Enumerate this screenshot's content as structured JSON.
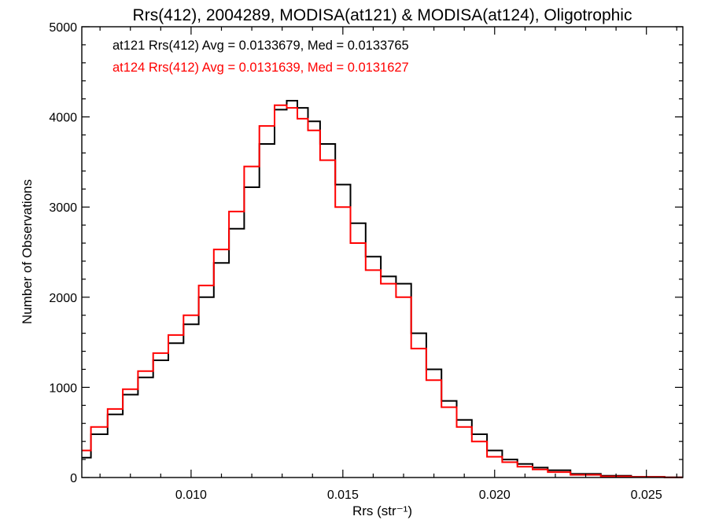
{
  "chart_data": {
    "type": "line",
    "title": "Rrs(412), 2004289, MODISA(at121) & MODISA(at124), Oligotrophic",
    "xlabel": "Rrs (str⁻¹)",
    "ylabel": "Number of Observations",
    "xlim": [
      0.0064,
      0.0262
    ],
    "ylim": [
      0,
      5000
    ],
    "x_ticks": [
      0.01,
      0.015,
      0.02,
      0.025
    ],
    "x_tick_labels": [
      "0.010",
      "0.015",
      "0.020",
      "0.025"
    ],
    "y_ticks": [
      0,
      1000,
      2000,
      3000,
      4000,
      5000
    ],
    "y_tick_labels": [
      "0",
      "1000",
      "2000",
      "3000",
      "4000",
      "5000"
    ],
    "grid": false,
    "step": true,
    "annotations": [
      {
        "text": "at121 Rrs(412) Avg = 0.0133679, Med = 0.0133765",
        "color": "#000000"
      },
      {
        "text": "at124 Rrs(412) Avg = 0.0131639, Med = 0.0131627",
        "color": "#ff0000"
      }
    ],
    "series": [
      {
        "color": "#000000",
        "x": [
          0.0064,
          0.007,
          0.0075,
          0.008,
          0.0085,
          0.009,
          0.0095,
          0.01,
          0.0105,
          0.011,
          0.0115,
          0.012,
          0.0125,
          0.013,
          0.0133,
          0.0137,
          0.014,
          0.0145,
          0.015,
          0.0155,
          0.016,
          0.0165,
          0.017,
          0.0175,
          0.018,
          0.0185,
          0.019,
          0.0195,
          0.02,
          0.0205,
          0.021,
          0.0215,
          0.022,
          0.023,
          0.024,
          0.025,
          0.0262
        ],
        "values": [
          220,
          480,
          700,
          920,
          1110,
          1300,
          1490,
          1700,
          2000,
          2380,
          2760,
          3220,
          3700,
          4080,
          4180,
          4100,
          3950,
          3700,
          3250,
          2820,
          2450,
          2230,
          2150,
          1600,
          1200,
          850,
          640,
          480,
          300,
          200,
          150,
          110,
          80,
          40,
          20,
          8,
          2
        ]
      },
      {
        "color": "#ff0000",
        "x": [
          0.0064,
          0.007,
          0.0075,
          0.008,
          0.0085,
          0.009,
          0.0095,
          0.01,
          0.0105,
          0.011,
          0.0115,
          0.012,
          0.0125,
          0.013,
          0.0133,
          0.0137,
          0.014,
          0.0145,
          0.015,
          0.0155,
          0.016,
          0.0165,
          0.017,
          0.0175,
          0.018,
          0.0185,
          0.019,
          0.0195,
          0.02,
          0.0205,
          0.021,
          0.0215,
          0.022,
          0.023,
          0.024,
          0.025,
          0.0262
        ],
        "values": [
          300,
          560,
          760,
          980,
          1180,
          1380,
          1580,
          1800,
          2130,
          2530,
          2950,
          3450,
          3900,
          4130,
          4100,
          3980,
          3850,
          3520,
          3000,
          2600,
          2300,
          2150,
          2000,
          1430,
          1080,
          780,
          560,
          400,
          230,
          170,
          120,
          90,
          60,
          30,
          12,
          5,
          1
        ]
      }
    ]
  }
}
